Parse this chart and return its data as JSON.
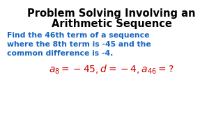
{
  "title_line1": "Problem Solving Involving an",
  "title_line2": "Arithmetic Sequence",
  "body_line1": "Find the 46th term of a sequence",
  "body_line2": "where the 8th term is -45 and the",
  "body_line3": "common difference is -4.",
  "formula": "$a_{8} = -45, d = -4, a_{46} =?$",
  "title_color": "#000000",
  "body_color": "#1565C0",
  "formula_color": "#CC0000",
  "bg_color": "#FFFFFF",
  "title_fontsize": 10.5,
  "body_fontsize": 7.8,
  "formula_fontsize": 10.0
}
